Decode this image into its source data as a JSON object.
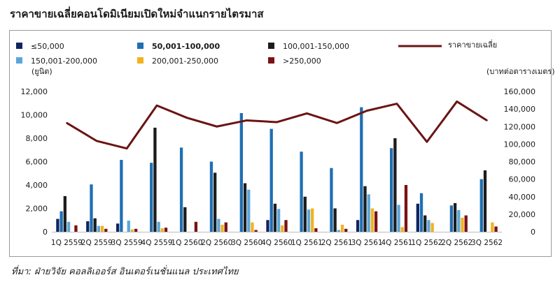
{
  "title": "ราคาขายเฉลี่ยคอนโดมิเนียมเปิดใหม่จำแนกรายไตรมาส",
  "source": "ที่มา: ฝ่ายวิจัย คอลลิเออร์ส อินเตอร์เนชั่นแนล ประเทศไทย",
  "colors": {
    "lt50k": "#0d2561",
    "r50_100k": "#1f6fb3",
    "r100_150k": "#1c1c1c",
    "r150_200k": "#5aa6da",
    "r200_250k": "#f2b21f",
    "gt250k": "#7a1212",
    "avg_price": "#6b1414"
  },
  "chart_data": {
    "type": "bar",
    "title": "ราคาขายเฉลี่ยคอนโดมิเนียมเปิดใหม่จำแนกรายไตรมาส",
    "ylabel": "(ยูนิต)",
    "y2label": "(บาทต่อตารางเมตร)",
    "ylim": [
      0,
      12000
    ],
    "y2lim": [
      0,
      160000
    ],
    "yticks": [
      "0",
      "2,000",
      "4,000",
      "6,000",
      "8,000",
      "10,000",
      "12,000"
    ],
    "y2ticks": [
      "0",
      "20,000",
      "40,000",
      "60,000",
      "80,000",
      "100,000",
      "120,000",
      "140,000",
      "160,000"
    ],
    "grid": false,
    "legend_position": "top",
    "categories": [
      "1Q 2559",
      "2Q 2559",
      "3Q 2559",
      "4Q 2559",
      "1Q 2560",
      "2Q 2560",
      "3Q 2560",
      "4Q 2560",
      "1Q 2561",
      "2Q 2561",
      "3Q 2561",
      "4Q 2561",
      "1Q 2562",
      "2Q 2562",
      "3Q 2562"
    ],
    "category_axis_labels": [
      "1Q 2559",
      "2Q 2559",
      "3Q 2559",
      "4Q 2559",
      "1Q 2560",
      "2Q 2560",
      "3Q 2560",
      "4Q 2560",
      "1Q 2561",
      "2Q 2561",
      "3Q 2561",
      "4Q 2561",
      "1Q 2562",
      "2Q 2562",
      "3Q 2562"
    ],
    "series": [
      {
        "name": "≤50,000",
        "color_key": "lt50k",
        "values": [
          1100,
          900,
          700,
          0,
          0,
          0,
          0,
          1000,
          0,
          0,
          1000,
          0,
          2400,
          0,
          0
        ]
      },
      {
        "name": "50,001-100,000",
        "color_key": "r50_100k",
        "values": [
          1750,
          4050,
          6150,
          5900,
          7200,
          6000,
          10150,
          8800,
          6850,
          5450,
          10650,
          7150,
          3300,
          2250,
          4500
        ]
      },
      {
        "name": "100,001-150,000",
        "color_key": "r100_150k",
        "values": [
          3050,
          1150,
          0,
          8900,
          2100,
          5050,
          4150,
          2400,
          3000,
          2000,
          3900,
          8000,
          1400,
          2450,
          5250
        ]
      },
      {
        "name": "150,001-200,000",
        "color_key": "r150_200k",
        "values": [
          850,
          500,
          950,
          850,
          0,
          1100,
          3600,
          1950,
          1900,
          150,
          3200,
          2300,
          1000,
          1850,
          0
        ]
      },
      {
        "name": "200,001-250,000",
        "color_key": "r200_250k",
        "values": [
          0,
          500,
          200,
          300,
          0,
          600,
          800,
          550,
          2000,
          600,
          2000,
          400,
          750,
          1200,
          800
        ]
      },
      {
        "name": ">250,000",
        "color_key": "gt250k",
        "values": [
          550,
          250,
          250,
          350,
          850,
          800,
          150,
          1000,
          300,
          250,
          1750,
          4000,
          0,
          1400,
          450
        ]
      }
    ],
    "line": {
      "name": "ราคาขายเฉลี่ย",
      "axis": "right",
      "color_key": "avg_price",
      "values": [
        124000,
        103500,
        95000,
        144000,
        130000,
        120000,
        127000,
        125000,
        135000,
        124000,
        138000,
        146000,
        102500,
        148500,
        127000
      ]
    }
  }
}
